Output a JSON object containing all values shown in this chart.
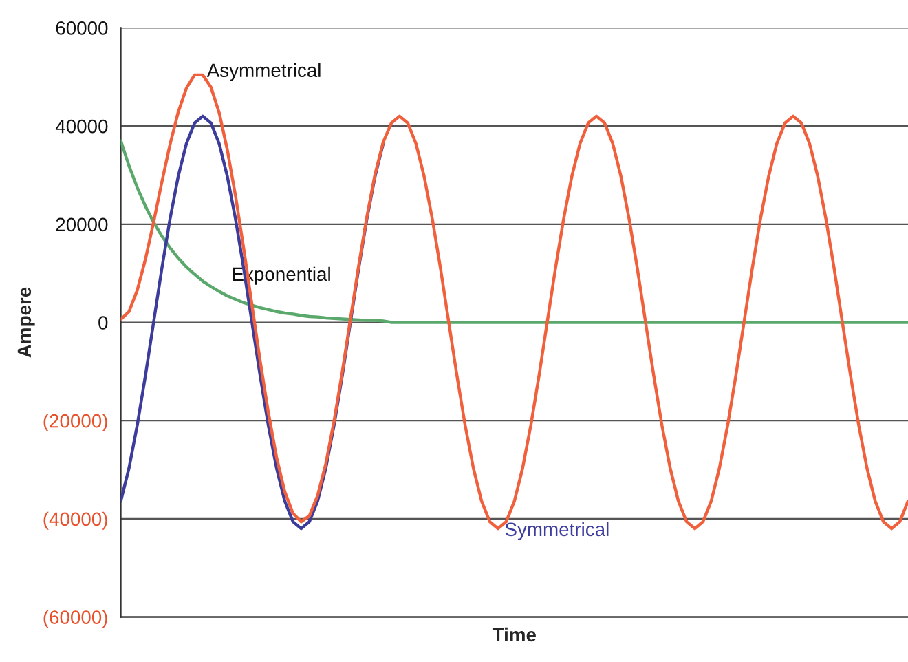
{
  "chart_data": {
    "type": "line",
    "xlabel": "Time",
    "ylabel": "Ampere",
    "categories": [
      null,
      null,
      null,
      null,
      null,
      null,
      null,
      null,
      null,
      null,
      null,
      null,
      null,
      null,
      null,
      null,
      null,
      null,
      null,
      null,
      null,
      null,
      null,
      null,
      null,
      null,
      null,
      null,
      null,
      null,
      null,
      null,
      null,
      null,
      null,
      null,
      null,
      null,
      null,
      null,
      null,
      null,
      null,
      null,
      null,
      null,
      null,
      null,
      null,
      null,
      null,
      null,
      null,
      null,
      null,
      null,
      null,
      null,
      null,
      null,
      null,
      null,
      null,
      null,
      null,
      null,
      null,
      null,
      null,
      null,
      null,
      null,
      null,
      null,
      null,
      null,
      null,
      null,
      null,
      null,
      null,
      null,
      null,
      null,
      null,
      null,
      null,
      null,
      null,
      null,
      null,
      null,
      null,
      null,
      null,
      null,
      null
    ],
    "ylim": [
      -60000,
      60000
    ],
    "yticks": [
      {
        "value": -60000,
        "label": "(60000)"
      },
      {
        "value": -40000,
        "label": "(40000)"
      },
      {
        "value": -20000,
        "label": "(20000)"
      },
      0,
      20000,
      40000,
      60000
    ],
    "grid": "y",
    "legend": false,
    "marker": "none",
    "line_style": "solid",
    "series": [
      {
        "name": "Asymmetrical",
        "color": "#f0603c",
        "values": [
          600,
          2200,
          6500,
          12800,
          20400,
          28500,
          36200,
          42800,
          47700,
          50400,
          50400,
          47900,
          42700,
          35100,
          25700,
          14900,
          3500,
          -7900,
          -18400,
          -27500,
          -34500,
          -38900,
          -40600,
          -39400,
          -35300,
          -28800,
          -20200,
          -10200,
          600,
          11400,
          21400,
          30100,
          36700,
          40600,
          42000,
          40600,
          36400,
          29700,
          21000,
          10900,
          0,
          -10900,
          -21000,
          -29700,
          -36400,
          -40600,
          -42000,
          -40600,
          -36400,
          -29700,
          -21000,
          -10900,
          0,
          10900,
          21000,
          29700,
          36400,
          40600,
          42000,
          40600,
          36400,
          29700,
          21000,
          10900,
          0,
          -10900,
          -21000,
          -29700,
          -36400,
          -40600,
          -42000,
          -40600,
          -36400,
          -29700,
          -21000,
          -10900,
          0,
          10900,
          21000,
          29700,
          36400,
          40600,
          42000,
          40600,
          36400,
          29700,
          21000,
          10900,
          0,
          -10900,
          -21000,
          -29700,
          -36400,
          -40600,
          -42000,
          -40600,
          -36400
        ]
      },
      {
        "name": "Symmetrical",
        "color": "#3c3c9c",
        "values": [
          -36400,
          -29700,
          -21000,
          -10900,
          0,
          10900,
          21000,
          29700,
          36400,
          40600,
          42000,
          40600,
          36400,
          29700,
          21000,
          10900,
          0,
          -10900,
          -21000,
          -29700,
          -36400,
          -40600,
          -42000,
          -40600,
          -36400,
          -29700,
          -21000,
          -10900,
          0,
          10900,
          21000,
          29700,
          36400,
          null,
          null,
          null,
          null,
          null,
          null,
          null,
          null,
          null,
          null,
          null,
          null,
          null,
          null,
          null,
          null,
          null,
          null,
          null,
          null,
          null,
          null,
          null,
          null,
          null,
          null,
          null,
          null,
          null,
          null,
          null,
          null,
          null,
          null,
          null,
          null,
          null,
          null,
          null,
          null,
          null,
          null,
          null,
          null,
          null,
          null,
          null,
          null,
          null,
          null,
          null,
          null,
          null,
          null,
          null,
          null,
          null,
          null,
          null,
          null,
          null,
          null,
          null,
          null
        ]
      },
      {
        "name": "Exponential",
        "color": "#5aa86c",
        "values": [
          37000,
          31900,
          27500,
          23700,
          20400,
          17600,
          15200,
          13100,
          11300,
          9800,
          8400,
          7300,
          6300,
          5400,
          4700,
          4000,
          3500,
          3000,
          2600,
          2200,
          1900,
          1700,
          1400,
          1200,
          1100,
          900,
          800,
          700,
          600,
          500,
          400,
          400,
          300,
          0,
          0,
          0,
          0,
          0,
          0,
          0,
          0,
          0,
          0,
          0,
          0,
          0,
          0,
          0,
          0,
          0,
          0,
          0,
          0,
          0,
          0,
          0,
          0,
          0,
          0,
          0,
          0,
          0,
          0,
          0,
          0,
          0,
          0,
          0,
          0,
          0,
          0,
          0,
          0,
          0,
          0,
          0,
          0,
          0,
          0,
          0,
          0,
          0,
          0,
          0,
          0,
          0,
          0,
          0,
          0,
          0,
          0,
          0,
          0,
          0,
          0,
          0,
          0
        ]
      }
    ]
  }
}
